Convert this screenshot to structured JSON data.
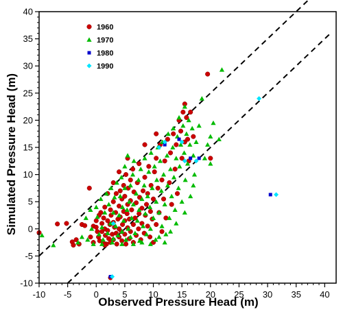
{
  "chart_data": {
    "type": "scatter",
    "xlabel": "Observed Pressure Head (m)",
    "ylabel": "Simulated Pressure Head (m)",
    "xlim": [
      -10,
      42
    ],
    "ylim": [
      -10,
      40
    ],
    "x_ticks": [
      -10,
      -5,
      0,
      5,
      10,
      15,
      20,
      25,
      30,
      35,
      40
    ],
    "y_ticks": [
      -10,
      -5,
      0,
      5,
      10,
      15,
      20,
      25,
      30,
      35,
      40
    ],
    "x_tick_labels": [
      "-10",
      "-5",
      "0",
      "5",
      "10",
      "15",
      "20",
      "25",
      "30",
      "35",
      "40"
    ],
    "y_tick_labels": [
      "-10",
      "-5",
      "0",
      "5",
      "10",
      "15",
      "20",
      "25",
      "30",
      "35",
      "40"
    ],
    "grid": false,
    "legend_position": "top-left",
    "reference_lines": [
      {
        "style": "dashed",
        "color": "#000000",
        "x": [
          -10,
          41
        ],
        "y": [
          -5,
          46
        ]
      },
      {
        "style": "dashed",
        "color": "#000000",
        "x": [
          -5,
          41
        ],
        "y": [
          -10,
          36
        ]
      }
    ],
    "series": [
      {
        "name": "1960",
        "marker": "circle",
        "color": "#cc0000",
        "points": [
          [
            -10,
            -0.7
          ],
          [
            -6.8,
            0.9
          ],
          [
            -5.2,
            1.0
          ],
          [
            -4.2,
            -2.4
          ],
          [
            -4.0,
            -3.0
          ],
          [
            -3.5,
            -2.0
          ],
          [
            -3.0,
            -2.8
          ],
          [
            -2.5,
            0.8
          ],
          [
            -2.0,
            0.6
          ],
          [
            -1.2,
            7.5
          ],
          [
            -1.0,
            -1.5
          ],
          [
            -0.5,
            0.5
          ],
          [
            0.0,
            1.5
          ],
          [
            0.0,
            0.3
          ],
          [
            0.2,
            -0.5
          ],
          [
            0.4,
            -1.5
          ],
          [
            0.6,
            -2.2
          ],
          [
            0.8,
            3.0
          ],
          [
            1.0,
            -0.5
          ],
          [
            1.0,
            1.0
          ],
          [
            1.2,
            -2.5
          ],
          [
            1.3,
            2.0
          ],
          [
            1.5,
            4.0
          ],
          [
            1.5,
            0.0
          ],
          [
            1.6,
            -1.2
          ],
          [
            1.8,
            -2.8
          ],
          [
            2.0,
            1.5
          ],
          [
            2.0,
            -0.3
          ],
          [
            2.2,
            -1.8
          ],
          [
            2.4,
            0.8
          ],
          [
            2.5,
            3.5
          ],
          [
            2.5,
            -2.5
          ],
          [
            2.6,
            2.5
          ],
          [
            2.8,
            -1.0
          ],
          [
            3.0,
            5.0
          ],
          [
            3.0,
            1.2
          ],
          [
            3.0,
            -2.0
          ],
          [
            3.2,
            0.3
          ],
          [
            3.4,
            3.0
          ],
          [
            3.5,
            -0.8
          ],
          [
            3.5,
            6.5
          ],
          [
            3.6,
            -2.8
          ],
          [
            3.8,
            1.8
          ],
          [
            4.0,
            0.0
          ],
          [
            4.0,
            4.2
          ],
          [
            4.0,
            -1.5
          ],
          [
            4.2,
            7.0
          ],
          [
            4.2,
            2.2
          ],
          [
            4.4,
            -0.5
          ],
          [
            4.5,
            5.5
          ],
          [
            4.5,
            -2.2
          ],
          [
            4.6,
            0.8
          ],
          [
            4.8,
            3.2
          ],
          [
            4.8,
            8.0
          ],
          [
            5.0,
            1.5
          ],
          [
            5.0,
            -1.0
          ],
          [
            5.0,
            6.0
          ],
          [
            5.2,
            10.0
          ],
          [
            5.2,
            -2.8
          ],
          [
            5.4,
            2.8
          ],
          [
            5.5,
            0.2
          ],
          [
            5.5,
            4.5
          ],
          [
            5.6,
            7.5
          ],
          [
            5.8,
            -1.8
          ],
          [
            5.8,
            1.8
          ],
          [
            6.0,
            9.0
          ],
          [
            6.0,
            5.2
          ],
          [
            6.0,
            -0.5
          ],
          [
            6.2,
            3.5
          ],
          [
            6.4,
            11.0
          ],
          [
            6.5,
            0.8
          ],
          [
            6.5,
            -2.5
          ],
          [
            6.6,
            6.8
          ],
          [
            6.8,
            2.0
          ],
          [
            7.0,
            4.8
          ],
          [
            7.0,
            -1.2
          ],
          [
            7.2,
            8.5
          ],
          [
            7.4,
            0.0
          ],
          [
            7.5,
            2.8
          ],
          [
            7.5,
            12.0
          ],
          [
            7.6,
            5.8
          ],
          [
            7.8,
            -2.0
          ],
          [
            8.0,
            3.8
          ],
          [
            8.0,
            1.0
          ],
          [
            8.2,
            7.0
          ],
          [
            8.4,
            -0.8
          ],
          [
            8.5,
            9.5
          ],
          [
            8.6,
            2.5
          ],
          [
            8.8,
            4.5
          ],
          [
            9.0,
            0.5
          ],
          [
            9.0,
            6.5
          ],
          [
            9.2,
            11.5
          ],
          [
            9.4,
            -1.5
          ],
          [
            9.5,
            3.2
          ],
          [
            9.6,
            8.0
          ],
          [
            9.8,
            1.8
          ],
          [
            10.0,
            5.5
          ],
          [
            10.0,
            -2.5
          ],
          [
            10.2,
            10.5
          ],
          [
            10.5,
            0.8
          ],
          [
            10.5,
            13.0
          ],
          [
            10.8,
            7.5
          ],
          [
            11.0,
            3.0
          ],
          [
            11.2,
            15.5
          ],
          [
            11.5,
            9.0
          ],
          [
            11.5,
            -0.5
          ],
          [
            11.8,
            5.5
          ],
          [
            12.0,
            12.5
          ],
          [
            12.2,
            2.0
          ],
          [
            12.5,
            16.5
          ],
          [
            12.8,
            8.5
          ],
          [
            13.0,
            14.0
          ],
          [
            13.2,
            4.5
          ],
          [
            13.5,
            17.5
          ],
          [
            13.8,
            11.0
          ],
          [
            14.0,
            15.5
          ],
          [
            14.2,
            6.5
          ],
          [
            14.5,
            20.0
          ],
          [
            14.8,
            18.0
          ],
          [
            15.0,
            13.0
          ],
          [
            15.2,
            21.5
          ],
          [
            15.5,
            16.0
          ],
          [
            15.5,
            23.0
          ],
          [
            15.8,
            20.5
          ],
          [
            16.0,
            16.5
          ],
          [
            16.2,
            12.5
          ],
          [
            16.5,
            21.5
          ],
          [
            17.0,
            17.0
          ],
          [
            19.5,
            28.5
          ],
          [
            20.0,
            13.0
          ],
          [
            2.5,
            -9.0
          ],
          [
            8.5,
            15.5
          ],
          [
            10.5,
            17.5
          ],
          [
            5.5,
            13.0
          ],
          [
            4.0,
            10.5
          ],
          [
            3.0,
            8.5
          ],
          [
            2.0,
            6.5
          ],
          [
            1.5,
            -3.0
          ],
          [
            -0.5,
            -2.5
          ],
          [
            0.5,
            2.5
          ]
        ]
      },
      {
        "name": "1970",
        "marker": "triangle",
        "color": "#00bb00",
        "points": [
          [
            -9.5,
            -1.2
          ],
          [
            -7.5,
            -3.0
          ],
          [
            -3.2,
            -2.5
          ],
          [
            -2.5,
            -1.5
          ],
          [
            -1.8,
            2.0
          ],
          [
            -1.5,
            -2.0
          ],
          [
            -1.0,
            3.5
          ],
          [
            -0.8,
            0.0
          ],
          [
            -0.5,
            -2.8
          ],
          [
            0.0,
            4.0
          ],
          [
            0.2,
            2.2
          ],
          [
            0.5,
            -1.0
          ],
          [
            0.8,
            5.5
          ],
          [
            1.0,
            0.3
          ],
          [
            1.2,
            -2.0
          ],
          [
            1.5,
            3.0
          ],
          [
            1.8,
            6.5
          ],
          [
            2.0,
            -0.8
          ],
          [
            2.2,
            4.5
          ],
          [
            2.5,
            1.0
          ],
          [
            2.6,
            7.5
          ],
          [
            2.8,
            -2.5
          ],
          [
            3.0,
            3.0
          ],
          [
            3.2,
            5.8
          ],
          [
            3.4,
            0.5
          ],
          [
            3.6,
            8.5
          ],
          [
            3.8,
            -1.2
          ],
          [
            4.0,
            2.5
          ],
          [
            4.2,
            6.0
          ],
          [
            4.4,
            9.5
          ],
          [
            4.5,
            -0.5
          ],
          [
            4.6,
            4.0
          ],
          [
            4.8,
            1.5
          ],
          [
            5.0,
            7.5
          ],
          [
            5.0,
            11.5
          ],
          [
            5.2,
            -2.0
          ],
          [
            5.4,
            3.5
          ],
          [
            5.5,
            13.5
          ],
          [
            5.6,
            0.0
          ],
          [
            5.8,
            5.0
          ],
          [
            6.0,
            8.0
          ],
          [
            6.0,
            -1.5
          ],
          [
            6.2,
            2.0
          ],
          [
            6.4,
            10.0
          ],
          [
            6.5,
            4.5
          ],
          [
            6.6,
            12.5
          ],
          [
            6.8,
            -0.8
          ],
          [
            7.0,
            6.5
          ],
          [
            7.2,
            1.5
          ],
          [
            7.4,
            9.0
          ],
          [
            7.5,
            3.5
          ],
          [
            7.6,
            -2.2
          ],
          [
            7.8,
            11.0
          ],
          [
            8.0,
            5.5
          ],
          [
            8.2,
            0.5
          ],
          [
            8.4,
            8.0
          ],
          [
            8.5,
            13.0
          ],
          [
            8.6,
            2.8
          ],
          [
            8.8,
            -1.0
          ],
          [
            9.0,
            6.0
          ],
          [
            9.2,
            10.5
          ],
          [
            9.4,
            4.0
          ],
          [
            9.5,
            0.0
          ],
          [
            9.6,
            14.0
          ],
          [
            9.8,
            7.5
          ],
          [
            10.0,
            2.0
          ],
          [
            10.2,
            11.5
          ],
          [
            10.4,
            -2.0
          ],
          [
            10.5,
            5.0
          ],
          [
            10.6,
            9.0
          ],
          [
            10.8,
            15.0
          ],
          [
            11.0,
            3.0
          ],
          [
            11.2,
            12.5
          ],
          [
            11.4,
            7.0
          ],
          [
            11.5,
            0.5
          ],
          [
            11.6,
            16.0
          ],
          [
            11.8,
            10.0
          ],
          [
            12.0,
            4.5
          ],
          [
            12.2,
            -1.0
          ],
          [
            12.4,
            13.5
          ],
          [
            12.5,
            8.0
          ],
          [
            12.6,
            17.5
          ],
          [
            12.8,
            2.0
          ],
          [
            13.0,
            11.0
          ],
          [
            13.2,
            6.0
          ],
          [
            13.4,
            15.0
          ],
          [
            13.5,
            18.5
          ],
          [
            13.6,
            9.5
          ],
          [
            13.8,
            3.5
          ],
          [
            14.0,
            13.0
          ],
          [
            14.2,
            17.0
          ],
          [
            14.4,
            7.5
          ],
          [
            14.5,
            20.5
          ],
          [
            14.6,
            11.5
          ],
          [
            14.8,
            15.5
          ],
          [
            15.0,
            5.0
          ],
          [
            15.2,
            19.0
          ],
          [
            15.4,
            14.0
          ],
          [
            15.5,
            22.5
          ],
          [
            15.6,
            9.0
          ],
          [
            15.8,
            17.5
          ],
          [
            16.0,
            12.0
          ],
          [
            16.2,
            20.0
          ],
          [
            16.4,
            15.5
          ],
          [
            16.5,
            6.0
          ],
          [
            16.8,
            18.5
          ],
          [
            17.0,
            13.5
          ],
          [
            17.2,
            10.0
          ],
          [
            17.5,
            16.0
          ],
          [
            18.0,
            19.0
          ],
          [
            18.5,
            24.0
          ],
          [
            19.0,
            13.0
          ],
          [
            19.5,
            15.5
          ],
          [
            20.0,
            12.0
          ],
          [
            20.5,
            19.5
          ],
          [
            21.5,
            16.5
          ],
          [
            22.0,
            29.3
          ],
          [
            20.0,
            17.0
          ],
          [
            12.0,
            -2.5
          ],
          [
            11.0,
            -1.5
          ],
          [
            9.5,
            -2.8
          ],
          [
            8.0,
            -2.5
          ],
          [
            6.5,
            -2.8
          ],
          [
            4.5,
            -2.8
          ],
          [
            3.0,
            -1.8
          ],
          [
            1.0,
            -2.8
          ],
          [
            14.0,
            1.0
          ],
          [
            13.0,
            -0.5
          ],
          [
            15.5,
            3.0
          ],
          [
            17.0,
            8.0
          ]
        ]
      },
      {
        "name": "1980",
        "marker": "square",
        "color": "#0000cc",
        "points": [
          [
            2.5,
            -8.8
          ],
          [
            12.0,
            15.5
          ],
          [
            14.5,
            16.5
          ],
          [
            16.5,
            13.0
          ],
          [
            18.0,
            13.0
          ],
          [
            30.5,
            6.3
          ]
        ]
      },
      {
        "name": "1990",
        "marker": "diamond",
        "color": "#00e5ff",
        "points": [
          [
            2.8,
            -8.8
          ],
          [
            11.0,
            15.0
          ],
          [
            12.0,
            16.0
          ],
          [
            15.0,
            16.0
          ],
          [
            15.5,
            12.5
          ],
          [
            17.5,
            12.5
          ],
          [
            28.5,
            24.0
          ],
          [
            31.5,
            6.3
          ],
          [
            3.0,
            1.0
          ]
        ]
      }
    ]
  }
}
